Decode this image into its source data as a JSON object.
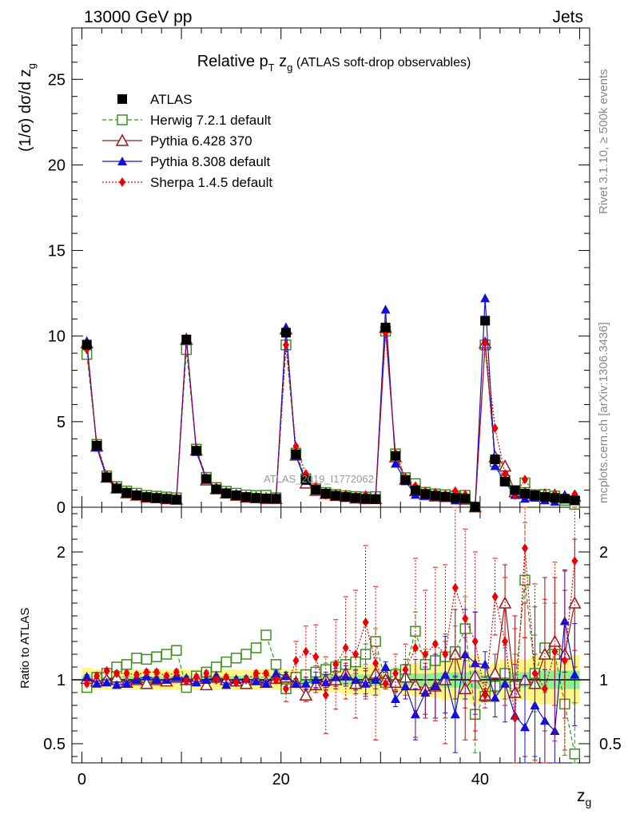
{
  "header": {
    "left": "13000 GeV pp",
    "right": "Jets"
  },
  "side": {
    "rivet": "Rivet 3.1.10, ≥ 500k events",
    "mcplots": "mcplots.cern.ch [arXiv:1306.3436]"
  },
  "watermark": "ATLAS_2019_I1772062",
  "chart_data": {
    "type": "line",
    "title_main": "Relative p",
    "title_sub_T": "T",
    "title_z": " z",
    "title_sub_g": "g",
    "title_rest": " (ATLAS soft-drop observables)",
    "ylabel": "(1/σ) dσ/d z",
    "ylabel_sub": "g",
    "xlabel": "z",
    "xlabel_sub": "g",
    "ratio_ylabel": "Ratio to ATLAS",
    "xlim": [
      -1,
      51
    ],
    "ylim": [
      0,
      28
    ],
    "ratio_ylim": [
      0.35,
      2.35
    ],
    "xticks": [
      0,
      20,
      40
    ],
    "xtick_labels": [
      "0",
      "20",
      "40"
    ],
    "yticks": [
      0,
      5,
      10,
      15,
      20,
      25
    ],
    "ytick_labels": [
      "0",
      "5",
      "10",
      "15",
      "20",
      "25"
    ],
    "ratio_yticks": [
      0.5,
      1,
      2
    ],
    "ratio_ytick_labels": [
      "0.5",
      "1",
      "2"
    ],
    "bins": [
      0.5,
      1.5,
      2.5,
      3.5,
      4.5,
      5.5,
      6.5,
      7.5,
      8.5,
      9.5,
      10.5,
      11.5,
      12.5,
      13.5,
      14.5,
      15.5,
      16.5,
      17.5,
      18.5,
      19.5,
      20.5,
      21.5,
      22.5,
      23.5,
      24.5,
      25.5,
      26.5,
      27.5,
      28.5,
      29.5,
      30.5,
      31.5,
      32.5,
      33.5,
      34.5,
      35.5,
      36.5,
      37.5,
      38.5,
      39.5,
      40.5,
      41.5,
      42.5,
      43.5,
      44.5,
      45.5,
      46.5,
      47.5,
      48.5,
      49.5
    ],
    "data": {
      "name": "ATLAS",
      "values": [
        9.5,
        3.6,
        1.75,
        1.1,
        0.85,
        0.7,
        0.6,
        0.55,
        0.5,
        0.45,
        9.8,
        3.3,
        1.65,
        1.05,
        0.82,
        0.7,
        0.6,
        0.55,
        0.52,
        0.5,
        10.2,
        3.1,
        1.6,
        1.02,
        0.8,
        0.68,
        0.6,
        0.55,
        0.5,
        0.48,
        10.5,
        3.0,
        1.6,
        1.0,
        0.78,
        0.68,
        0.62,
        0.55,
        0.5,
        0.02,
        10.9,
        2.8,
        1.5,
        1.0,
        0.8,
        0.7,
        0.6,
        0.55,
        0.5,
        0.4
      ],
      "band_frac": [
        0.06,
        0.05,
        0.05,
        0.05,
        0.05,
        0.05,
        0.05,
        0.05,
        0.05,
        0.05,
        0.05,
        0.05,
        0.05,
        0.05,
        0.05,
        0.05,
        0.05,
        0.05,
        0.05,
        0.05,
        0.05,
        0.05,
        0.05,
        0.06,
        0.06,
        0.06,
        0.07,
        0.07,
        0.07,
        0.08,
        0.05,
        0.06,
        0.07,
        0.08,
        0.08,
        0.09,
        0.1,
        0.1,
        0.1,
        0.12,
        0.06,
        0.08,
        0.1,
        0.1,
        0.1,
        0.12,
        0.12,
        0.12,
        0.12,
        0.12
      ]
    },
    "series": [
      {
        "name": "Herwig 7.2.1 default",
        "color": "#3f8f1f",
        "marker": "open-square",
        "dash": "5,3",
        "ratio": [
          0.94,
          1.02,
          1.05,
          1.1,
          1.12,
          1.17,
          1.16,
          1.18,
          1.2,
          1.23,
          0.94,
          1.03,
          1.06,
          1.1,
          1.14,
          1.17,
          1.2,
          1.25,
          1.35,
          1.12,
          0.93,
          1.02,
          1.04,
          1.06,
          1.08,
          1.1,
          1.12,
          1.14,
          1.2,
          1.3,
          0.98,
          1.04,
          1.08,
          1.38,
          1.12,
          1.15,
          1.18,
          1.22,
          1.4,
          0.73,
          0.87,
          0.95,
          1.05,
          0.95,
          1.78,
          1.05,
          1.25,
          1.2,
          0.81,
          0.42
        ],
        "err": [
          0.02,
          0.02,
          0.03,
          0.03,
          0.03,
          0.03,
          0.03,
          0.03,
          0.03,
          0.03,
          0.02,
          0.02,
          0.03,
          0.03,
          0.03,
          0.03,
          0.03,
          0.03,
          0.03,
          0.03,
          0.02,
          0.03,
          0.04,
          0.05,
          0.05,
          0.05,
          0.06,
          0.07,
          0.08,
          0.1,
          0.03,
          0.05,
          0.08,
          0.15,
          0.12,
          0.15,
          0.18,
          0.2,
          0.25,
          0.3,
          0.04,
          0.1,
          0.2,
          0.25,
          0.45,
          0.3,
          0.35,
          0.4,
          0.4,
          0.4
        ]
      },
      {
        "name": "Pythia 6.428 370",
        "color": "#9b1a1a",
        "marker": "open-triangle",
        "dash": "",
        "ratio": [
          1.01,
          0.99,
          1.0,
          1.02,
          0.98,
          1.0,
          0.97,
          1.0,
          0.99,
          1.02,
          1.0,
          1.01,
          0.96,
          1.02,
          1.0,
          0.99,
          0.97,
          1.0,
          0.98,
          1.01,
          1.02,
          0.98,
          0.88,
          0.96,
          1.0,
          1.0,
          1.05,
          0.97,
          0.99,
          1.05,
          1.0,
          0.98,
          1.02,
          0.96,
          0.93,
          0.95,
          1.0,
          1.2,
          0.93,
          1.03,
          0.88,
          1.05,
          1.6,
          0.9,
          1.0,
          0.97,
          1.2,
          1.3,
          1.2,
          1.6
        ],
        "err": [
          0.02,
          0.02,
          0.02,
          0.02,
          0.02,
          0.02,
          0.02,
          0.02,
          0.02,
          0.02,
          0.02,
          0.02,
          0.02,
          0.02,
          0.02,
          0.02,
          0.02,
          0.02,
          0.02,
          0.02,
          0.02,
          0.03,
          0.05,
          0.06,
          0.06,
          0.07,
          0.08,
          0.08,
          0.1,
          0.12,
          0.03,
          0.06,
          0.1,
          0.2,
          0.2,
          0.25,
          0.3,
          0.35,
          0.4,
          0.5,
          0.05,
          0.15,
          0.3,
          0.6,
          0.6,
          0.6,
          0.6,
          0.5,
          0.5,
          0.5
        ]
      },
      {
        "name": "Pythia 8.308 default",
        "color": "#1010dd",
        "marker": "filled-triangle",
        "dash": "",
        "ratio": [
          1.02,
          0.97,
          0.98,
          0.96,
          0.97,
          1.0,
          1.03,
          1.0,
          1.0,
          1.02,
          1.01,
          0.98,
          1.0,
          1.02,
          0.96,
          1.0,
          1.01,
          0.99,
          0.97,
          1.05,
          1.03,
          0.97,
          0.97,
          1.0,
          0.98,
          1.02,
          1.03,
          1.0,
          0.97,
          1.0,
          1.1,
          0.85,
          0.95,
          0.73,
          0.9,
          0.95,
          1.04,
          0.73,
          1.2,
          1.13,
          1.12,
          0.86,
          0.97,
          0.72,
          0.63,
          0.8,
          0.68,
          0.6,
          1.46,
          1.04
        ],
        "err": [
          0.02,
          0.02,
          0.02,
          0.02,
          0.02,
          0.02,
          0.02,
          0.02,
          0.02,
          0.02,
          0.02,
          0.02,
          0.02,
          0.02,
          0.02,
          0.02,
          0.02,
          0.02,
          0.02,
          0.02,
          0.03,
          0.03,
          0.05,
          0.06,
          0.06,
          0.07,
          0.08,
          0.08,
          0.1,
          0.12,
          0.04,
          0.06,
          0.1,
          0.2,
          0.2,
          0.25,
          0.3,
          0.3,
          0.35,
          0.4,
          0.1,
          0.15,
          0.3,
          0.4,
          0.4,
          0.4,
          0.4,
          0.4,
          0.4,
          0.4
        ]
      },
      {
        "name": "Sherpa 1.4.5 default",
        "color": "#ee0000",
        "marker": "filled-diamond",
        "dash": "2,2",
        "ratio": [
          0.97,
          1.03,
          1.07,
          1.05,
          1.05,
          1.04,
          1.06,
          1.06,
          1.03,
          1.06,
          0.99,
          1.02,
          1.05,
          1.0,
          1.02,
          0.98,
          1.0,
          1.05,
          1.05,
          1.0,
          0.93,
          1.15,
          1.22,
          1.18,
          0.88,
          1.12,
          1.25,
          1.2,
          1.45,
          1.13,
          0.97,
          1.05,
          1.08,
          1.25,
          1.2,
          1.28,
          1.2,
          1.72,
          1.48,
          1.3,
          0.88,
          1.65,
          1.3,
          0.7,
          2.03,
          1.05,
          0.93,
          1.22,
          1.15,
          1.93
        ],
        "err": [
          0.02,
          0.02,
          0.02,
          0.02,
          0.02,
          0.02,
          0.02,
          0.02,
          0.02,
          0.02,
          0.02,
          0.02,
          0.02,
          0.02,
          0.02,
          0.02,
          0.02,
          0.02,
          0.02,
          0.02,
          0.1,
          0.15,
          0.2,
          0.25,
          0.3,
          0.35,
          0.4,
          0.5,
          0.6,
          0.6,
          0.04,
          0.15,
          0.2,
          0.7,
          0.5,
          0.6,
          0.7,
          0.7,
          0.7,
          0.7,
          0.1,
          0.3,
          0.5,
          0.7,
          0.7,
          0.7,
          0.7,
          0.7,
          0.7,
          0.7
        ]
      }
    ]
  }
}
